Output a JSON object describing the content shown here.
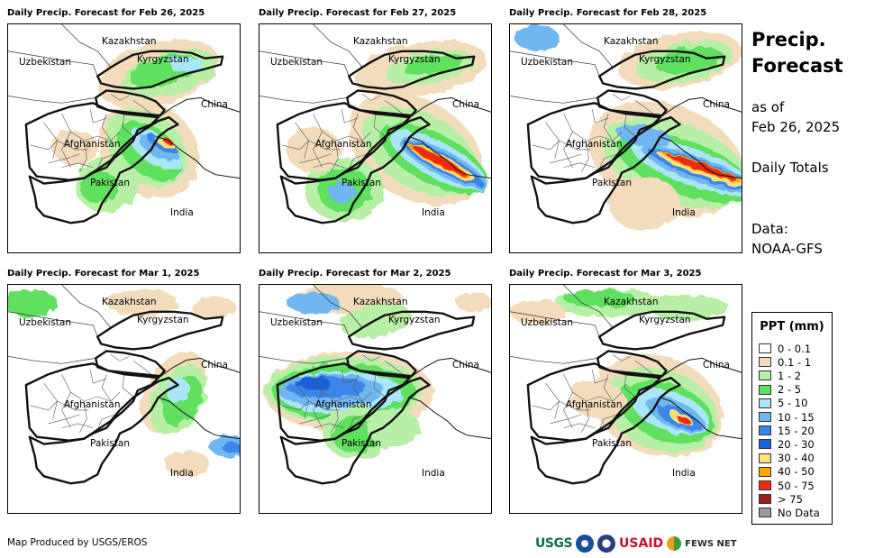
{
  "panels": [
    {
      "title": "Daily Precip. Forecast for Feb 26, 2025",
      "day": 0
    },
    {
      "title": "Daily Precip. Forecast for Feb 27, 2025",
      "day": 1
    },
    {
      "title": "Daily Precip. Forecast for Feb 28, 2025",
      "day": 2
    },
    {
      "title": "Daily Precip. Forecast for Mar 1, 2025",
      "day": 3
    },
    {
      "title": "Daily Precip. Forecast for Mar 2, 2025",
      "day": 4
    },
    {
      "title": "Daily Precip. Forecast for Mar 3, 2025",
      "day": 5
    }
  ],
  "country_labels": {
    "kazakhstan": "Kazakhstan",
    "uzbekistan": "Uzbekistan",
    "kyrgyzstan": "Kyrgyzstan",
    "china": "China",
    "afghanistan": "Afghanistan",
    "pakistan": "Pakistan",
    "india": "India"
  },
  "side": {
    "title_line1": "Precip.",
    "title_line2": "Forecast",
    "asof_line1": "as of",
    "asof_line2": "Feb 26, 2025",
    "totals": "Daily Totals",
    "data_line1": "Data:",
    "data_line2": "NOAA-GFS"
  },
  "legend": {
    "title": "PPT (mm)",
    "items": [
      {
        "label": "0 - 0.1",
        "color": "#ffffff"
      },
      {
        "label": "0.1 - 1",
        "color": "#f2dcbc"
      },
      {
        "label": "1 - 2",
        "color": "#b8efa6"
      },
      {
        "label": "2 - 5",
        "color": "#5fe05f"
      },
      {
        "label": "5 - 10",
        "color": "#a9e6f7"
      },
      {
        "label": "10 - 15",
        "color": "#6fb7f2"
      },
      {
        "label": "15 - 20",
        "color": "#3a86e8"
      },
      {
        "label": "20 - 30",
        "color": "#1f5fd6"
      },
      {
        "label": "30 - 40",
        "color": "#ffe07a"
      },
      {
        "label": "40 - 50",
        "color": "#ffa500"
      },
      {
        "label": "50 - 75",
        "color": "#ee2a0f"
      },
      {
        "label": "> 75",
        "color": "#9e1d1d"
      },
      {
        "label": "No Data",
        "color": "#9a9a9a"
      }
    ]
  },
  "footer": "Map Produced by USGS/EROS",
  "logos": {
    "usgs": "USGS",
    "usaid": "USAID",
    "fews": "FEWS NET"
  }
}
